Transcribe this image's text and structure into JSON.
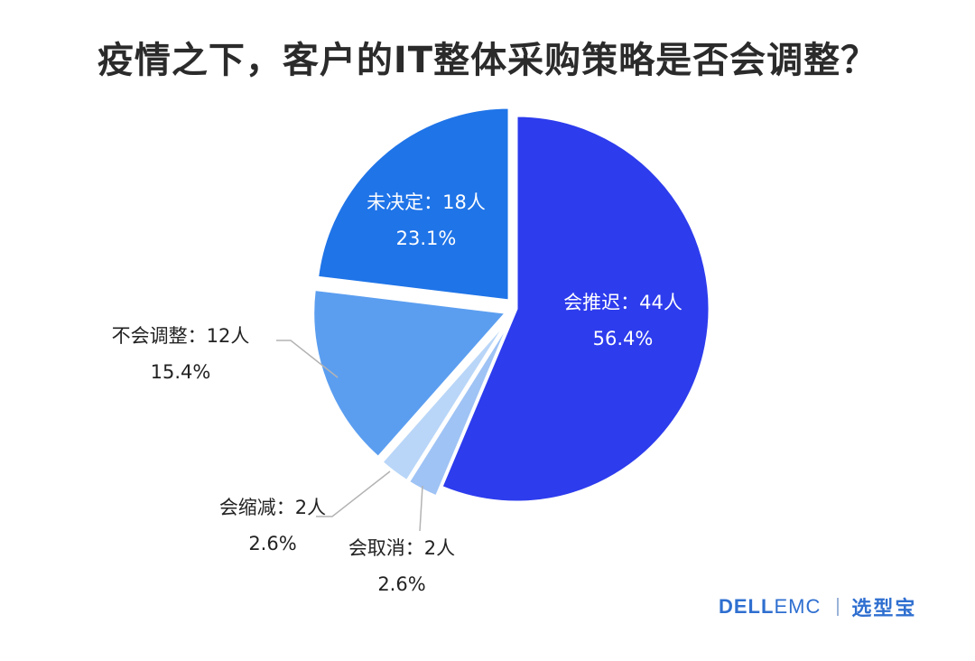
{
  "chart_data": {
    "type": "pie",
    "title": "疫情之下，客户的IT整体采购策略是否会调整？",
    "slices": [
      {
        "label": "会推迟：44人",
        "percent_text": "56.4%",
        "count": 44,
        "value": 56.4,
        "color": "#2d3ced",
        "exploded": false
      },
      {
        "label": "会取消：2人",
        "percent_text": "2.6%",
        "count": 2,
        "value": 2.6,
        "color": "#9fc3f5",
        "exploded": true
      },
      {
        "label": "会缩减：2人",
        "percent_text": "2.6%",
        "count": 2,
        "value": 2.6,
        "color": "#b9d6f8",
        "exploded": true
      },
      {
        "label": "不会调整：12人",
        "percent_text": "15.4%",
        "count": 12,
        "value": 15.4,
        "color": "#5b9ef0",
        "exploded": true
      },
      {
        "label": "未决定：18人",
        "percent_text": "23.1%",
        "count": 18,
        "value": 23.1,
        "color": "#1f74e8",
        "exploded": true
      }
    ]
  },
  "brand": {
    "dell": "DELL",
    "emc": "EMC",
    "name": "选型宝"
  }
}
